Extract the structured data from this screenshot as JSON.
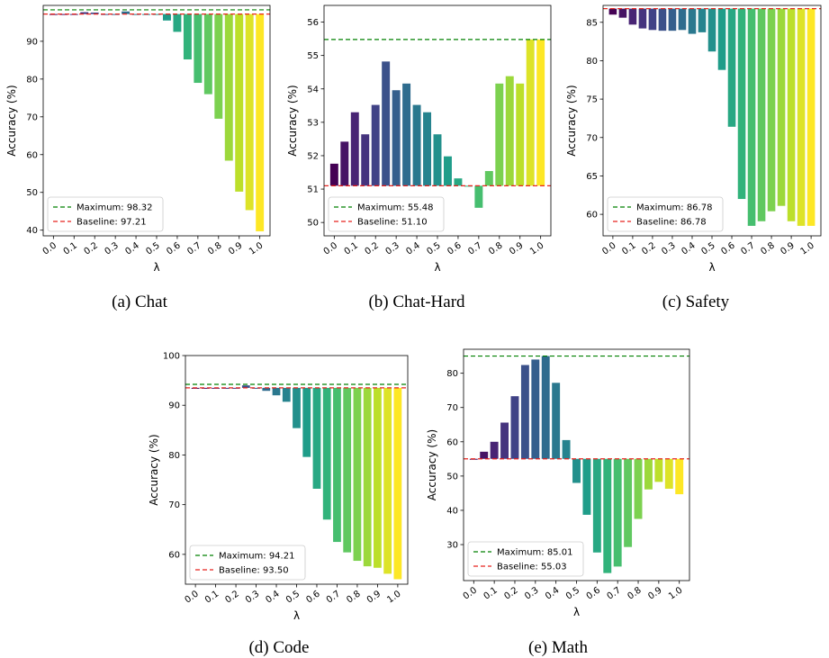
{
  "colors": {
    "maximum_line": "#008000",
    "baseline_line": "#e8231f",
    "colormap": "viridis"
  },
  "chart_data": [
    {
      "id": "chat",
      "type": "bar",
      "caption": "(a) Chat",
      "xlabel": "λ",
      "ylabel": "Accuracy (%)",
      "categories": [
        "0.0",
        "0.1",
        "0.2",
        "0.3",
        "0.4",
        "0.5",
        "0.6",
        "0.7",
        "0.8",
        "0.9",
        "1.0"
      ],
      "x": [
        0.0,
        0.05,
        0.1,
        0.15,
        0.2,
        0.25,
        0.3,
        0.35,
        0.4,
        0.45,
        0.5,
        0.55,
        0.6,
        0.65,
        0.7,
        0.75,
        0.8,
        0.85,
        0.9,
        0.95,
        1.0
      ],
      "values": [
        97.21,
        97.21,
        97.21,
        97.7,
        97.6,
        97.21,
        97.21,
        97.9,
        97.21,
        97.21,
        97.21,
        95.5,
        92.5,
        85.2,
        79.0,
        76.0,
        69.5,
        58.4,
        50.2,
        45.3,
        39.7
      ],
      "ylim": [
        38.5,
        99.5
      ],
      "yticks": [
        40,
        50,
        60,
        70,
        80,
        90
      ],
      "maximum": 98.32,
      "baseline": 97.21,
      "legend": {
        "position": "bottom-left",
        "entries": [
          "Maximum: 98.32",
          "Baseline: 97.21"
        ]
      },
      "grid": false
    },
    {
      "id": "chat-hard",
      "type": "bar",
      "caption": "(b) Chat-Hard",
      "xlabel": "λ",
      "ylabel": "Accuracy (%)",
      "categories": [
        "0.0",
        "0.1",
        "0.2",
        "0.3",
        "0.4",
        "0.5",
        "0.6",
        "0.7",
        "0.8",
        "0.9",
        "1.0"
      ],
      "x": [
        0.0,
        0.05,
        0.1,
        0.15,
        0.2,
        0.25,
        0.3,
        0.35,
        0.4,
        0.45,
        0.5,
        0.55,
        0.6,
        0.65,
        0.7,
        0.75,
        0.8,
        0.85,
        0.9,
        0.95,
        1.0
      ],
      "values": [
        51.76,
        52.42,
        53.3,
        52.64,
        53.52,
        54.82,
        53.96,
        54.16,
        53.52,
        53.3,
        52.64,
        51.98,
        51.32,
        51.1,
        50.44,
        51.54,
        54.16,
        54.38,
        54.16,
        55.48,
        55.48
      ],
      "ylim": [
        49.6,
        56.5
      ],
      "yticks": [
        50,
        51,
        52,
        53,
        54,
        55,
        56
      ],
      "maximum": 55.48,
      "baseline": 51.1,
      "legend": {
        "position": "bottom-left",
        "entries": [
          "Maximum: 55.48",
          "Baseline: 51.10"
        ]
      },
      "grid": false
    },
    {
      "id": "safety",
      "type": "bar",
      "caption": "(c) Safety",
      "xlabel": "λ",
      "ylabel": "Accuracy (%)",
      "categories": [
        "0.0",
        "0.1",
        "0.2",
        "0.3",
        "0.4",
        "0.5",
        "0.6",
        "0.7",
        "0.8",
        "0.9",
        "1.0"
      ],
      "x": [
        0.0,
        0.05,
        0.1,
        0.15,
        0.2,
        0.25,
        0.3,
        0.35,
        0.4,
        0.45,
        0.5,
        0.55,
        0.6,
        0.65,
        0.7,
        0.75,
        0.8,
        0.85,
        0.9,
        0.95,
        1.0
      ],
      "values": [
        86.0,
        85.6,
        84.7,
        84.2,
        84.0,
        83.9,
        83.9,
        84.0,
        83.5,
        83.7,
        81.2,
        78.8,
        71.4,
        62.0,
        58.5,
        59.1,
        60.4,
        61.1,
        59.1,
        58.5,
        58.5
      ],
      "ylim": [
        57.2,
        87.2
      ],
      "yticks": [
        60,
        65,
        70,
        75,
        80,
        85
      ],
      "maximum": 86.78,
      "baseline": 86.78,
      "legend": {
        "position": "bottom-left",
        "entries": [
          "Maximum: 86.78",
          "Baseline: 86.78"
        ]
      },
      "grid": false
    },
    {
      "id": "code",
      "type": "bar",
      "caption": "(d) Code",
      "xlabel": "λ",
      "ylabel": "Accuracy (%)",
      "categories": [
        "0.0",
        "0.1",
        "0.2",
        "0.3",
        "0.4",
        "0.5",
        "0.6",
        "0.7",
        "0.8",
        "0.9",
        "1.0"
      ],
      "x": [
        0.0,
        0.05,
        0.1,
        0.15,
        0.2,
        0.25,
        0.3,
        0.35,
        0.4,
        0.45,
        0.5,
        0.55,
        0.6,
        0.65,
        0.7,
        0.75,
        0.8,
        0.85,
        0.9,
        0.95,
        1.0
      ],
      "values": [
        93.5,
        93.5,
        93.5,
        93.5,
        93.5,
        94.0,
        93.5,
        92.9,
        92.0,
        90.7,
        85.4,
        79.6,
        73.2,
        67.0,
        62.5,
        60.4,
        58.7,
        57.6,
        57.3,
        56.1,
        55.0
      ],
      "ylim": [
        54.0,
        100.0
      ],
      "yticks": [
        60,
        70,
        80,
        90,
        100
      ],
      "maximum": 94.21,
      "baseline": 93.5,
      "legend": {
        "position": "bottom-left",
        "entries": [
          "Maximum: 94.21",
          "Baseline: 93.50"
        ]
      },
      "grid": false
    },
    {
      "id": "math",
      "type": "bar",
      "caption": "(e) Math",
      "xlabel": "λ",
      "ylabel": "Accuracy (%)",
      "categories": [
        "0.0",
        "0.1",
        "0.2",
        "0.3",
        "0.4",
        "0.5",
        "0.6",
        "0.7",
        "0.8",
        "0.9",
        "1.0"
      ],
      "x": [
        0.0,
        0.05,
        0.1,
        0.15,
        0.2,
        0.25,
        0.3,
        0.35,
        0.4,
        0.45,
        0.5,
        0.55,
        0.6,
        0.65,
        0.7,
        0.75,
        0.8,
        0.85,
        0.9,
        0.95,
        1.0
      ],
      "values": [
        55.03,
        57.1,
        60.0,
        65.6,
        73.3,
        82.4,
        84.0,
        85.01,
        77.2,
        60.5,
        48.0,
        38.7,
        27.7,
        21.7,
        23.6,
        29.3,
        37.5,
        46.1,
        48.3,
        46.3,
        44.7
      ],
      "ylim": [
        19.5,
        87.0
      ],
      "yticks": [
        30,
        40,
        50,
        60,
        70,
        80
      ],
      "maximum": 85.01,
      "baseline": 55.03,
      "legend": {
        "position": "bottom-left",
        "entries": [
          "Maximum: 85.01",
          "Baseline: 55.03"
        ]
      },
      "grid": false
    }
  ]
}
